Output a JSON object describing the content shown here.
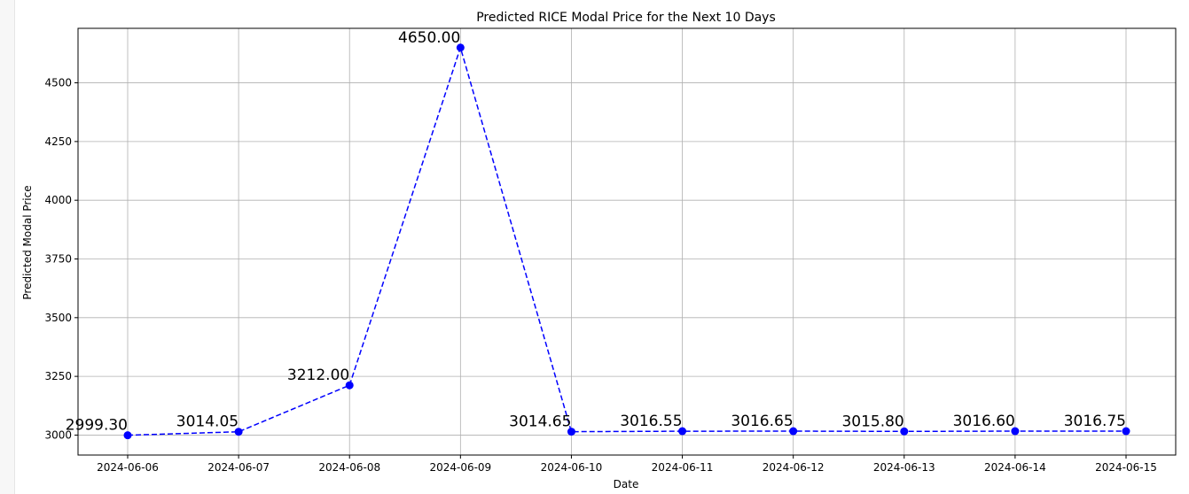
{
  "chart_data": {
    "type": "line",
    "title": "Predicted RICE Modal Price for the Next 10 Days",
    "xlabel": "Date",
    "ylabel": "Predicted Modal Price",
    "x": [
      "2024-06-06",
      "2024-06-07",
      "2024-06-08",
      "2024-06-09",
      "2024-06-10",
      "2024-06-11",
      "2024-06-12",
      "2024-06-13",
      "2024-06-14",
      "2024-06-15"
    ],
    "values": [
      2999.3,
      3014.05,
      3212.0,
      4650.0,
      3014.65,
      3016.55,
      3016.65,
      3015.8,
      3016.6,
      3016.75
    ],
    "data_labels": [
      "2999.30",
      "3014.05",
      "3212.00",
      "4650.00",
      "3014.65",
      "3016.55",
      "3016.65",
      "3015.80",
      "3016.60",
      "3016.75"
    ],
    "yticks": [
      3000,
      3250,
      3500,
      3750,
      4000,
      4250,
      4500
    ],
    "ylim": [
      2915,
      4732
    ],
    "grid": true,
    "line_style": "dashed",
    "marker": "circle",
    "color": "#0000ff"
  }
}
